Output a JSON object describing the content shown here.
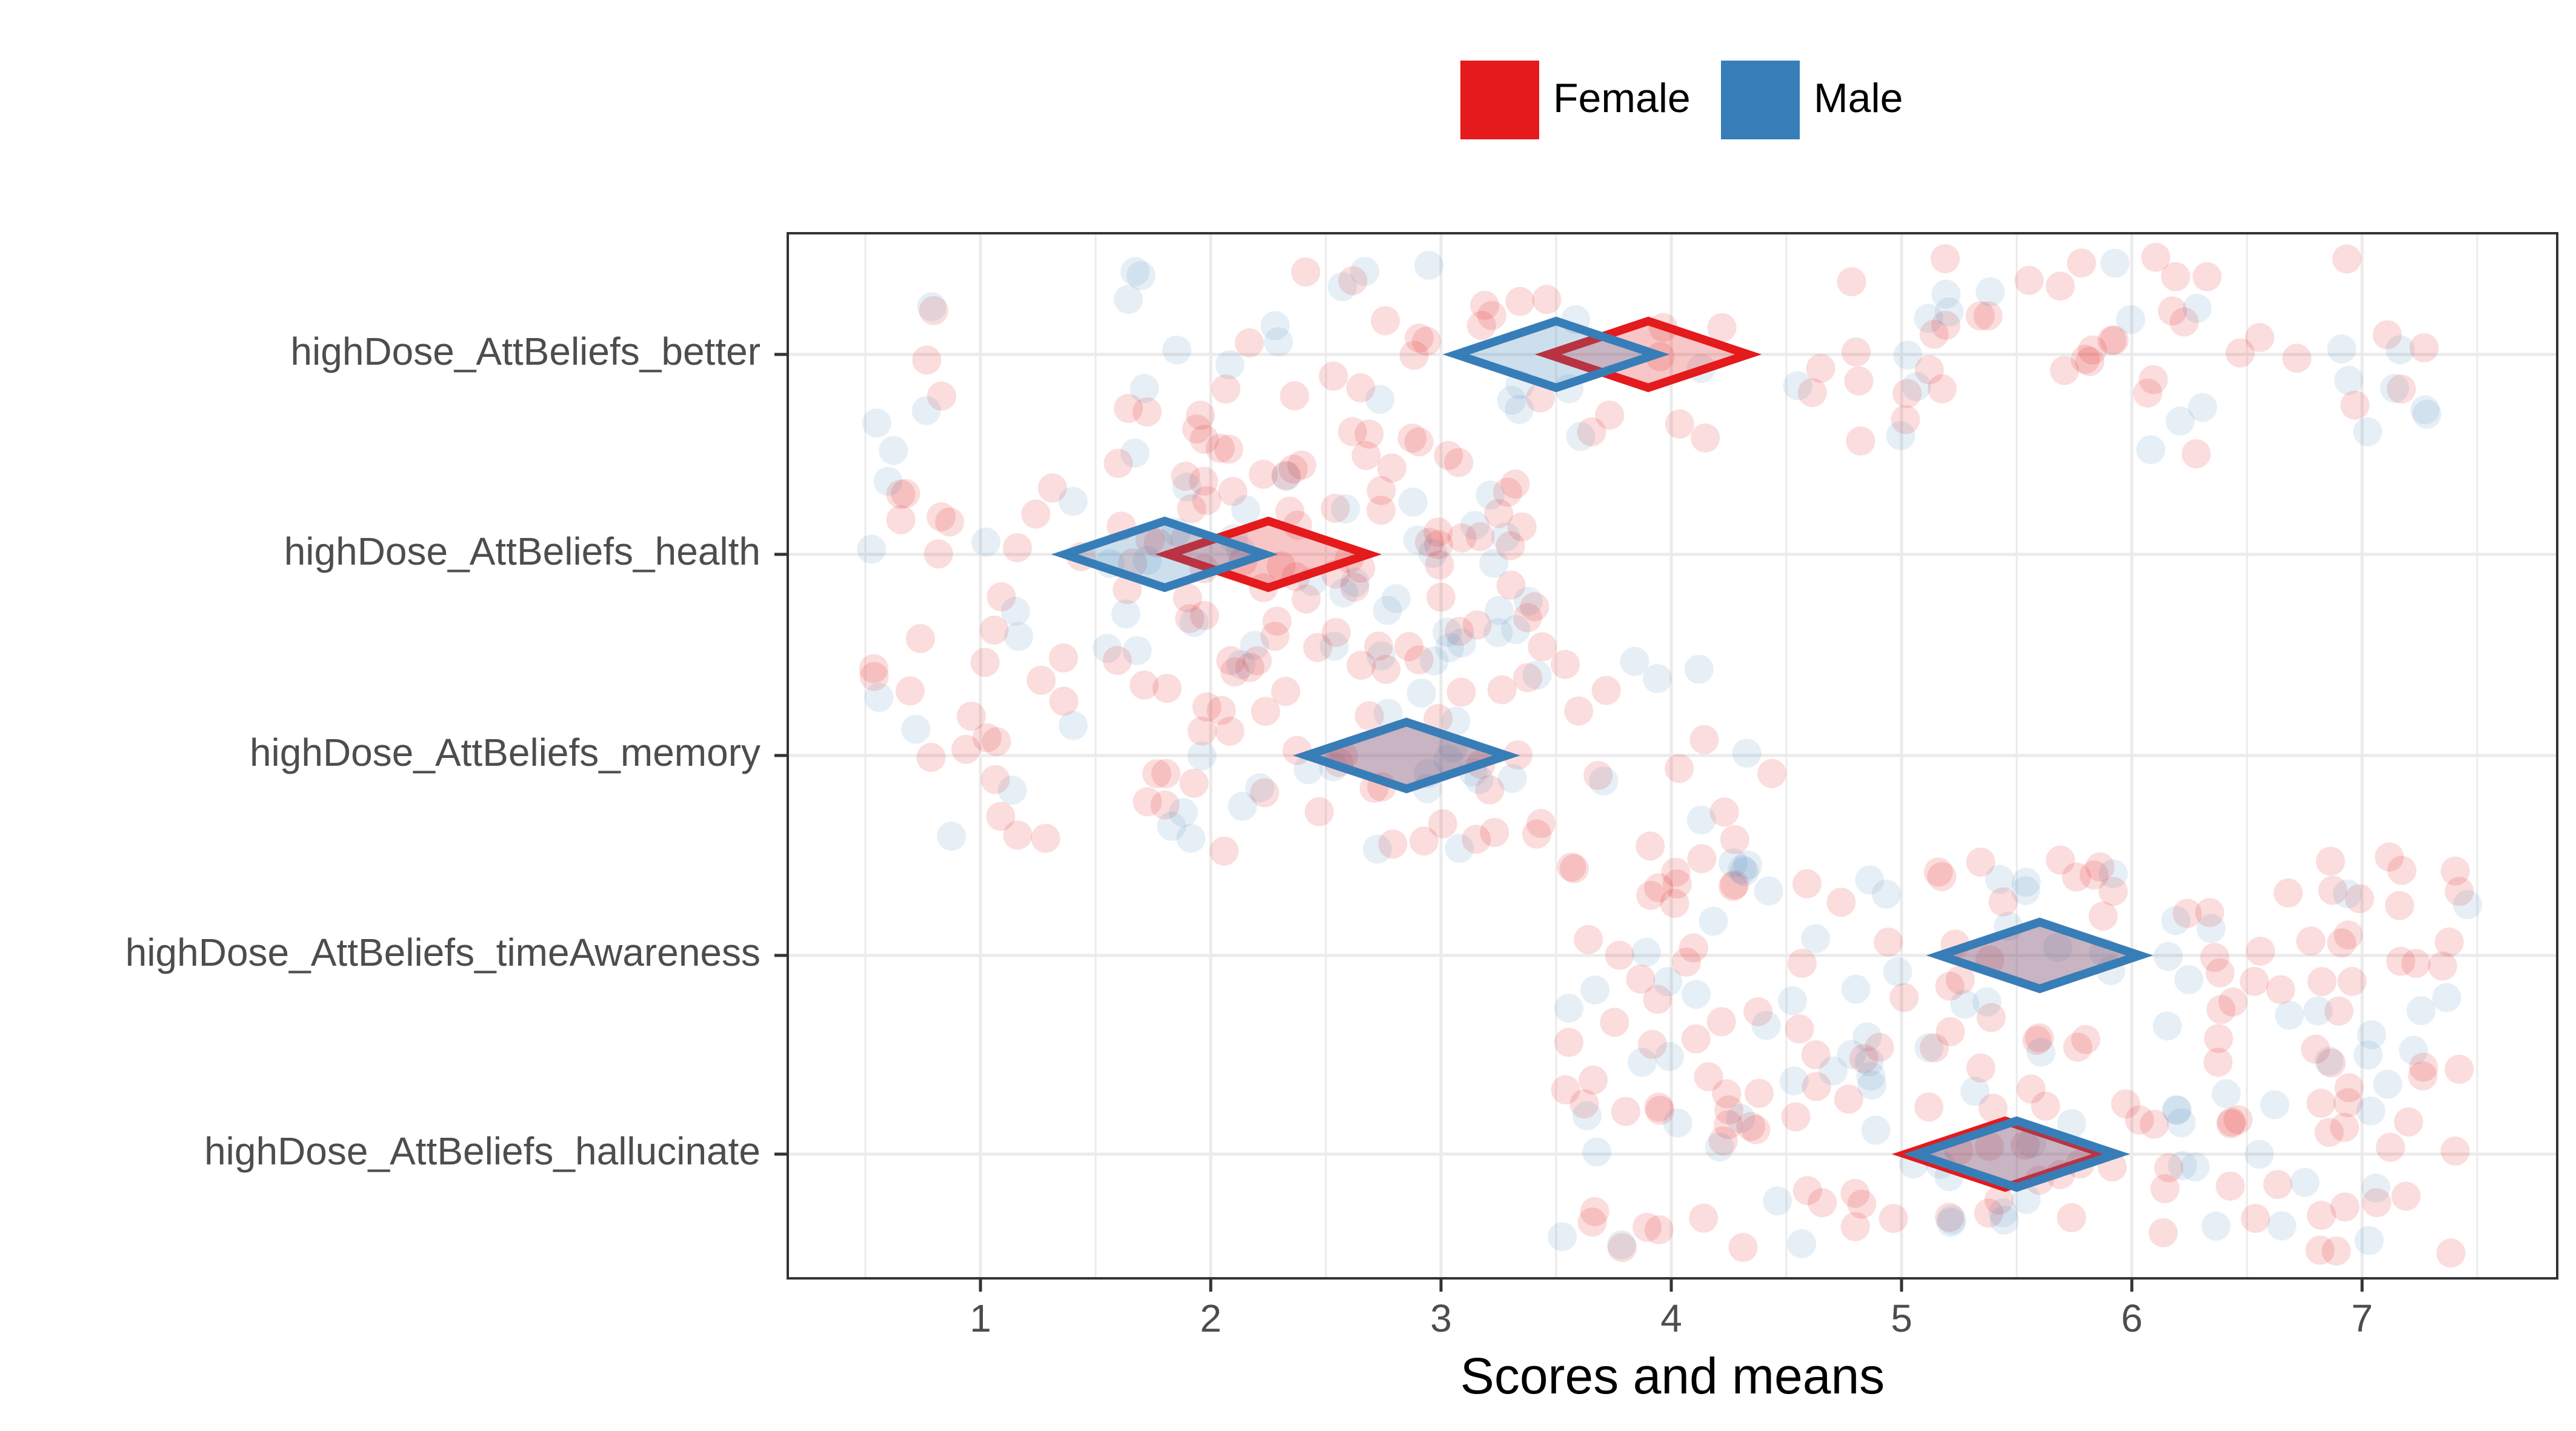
{
  "chart_data": {
    "type": "scatter",
    "subtype": "jittered points with mean diamonds",
    "xlabel": "Scores and means",
    "ylabel": "",
    "xlim": [
      0.5,
      7.5
    ],
    "x_ticks": [
      1,
      2,
      3,
      4,
      5,
      6,
      7
    ],
    "categories": [
      "highDose_AttBeliefs_better",
      "highDose_AttBeliefs_health",
      "highDose_AttBeliefs_memory",
      "highDose_AttBeliefs_timeAwareness",
      "highDose_AttBeliefs_hallucinate"
    ],
    "grid": true,
    "legend": {
      "position": "top",
      "entries": [
        "Female",
        "Male"
      ]
    },
    "series": [
      {
        "name": "Female",
        "color": "#e41a1c",
        "means": [
          3.9,
          2.25,
          2.85,
          5.6,
          5.45
        ],
        "point_counts": [
          78,
          75,
          70,
          80,
          80
        ]
      },
      {
        "name": "Male",
        "color": "#377eb8",
        "means": [
          3.5,
          1.8,
          2.85,
          5.6,
          5.5
        ],
        "point_counts": [
          45,
          40,
          35,
          45,
          45
        ]
      }
    ],
    "jitter_distributions": {
      "highDose_AttBeliefs_better": {
        "Female": [
          1,
          7
        ],
        "Male": [
          1,
          7
        ]
      },
      "highDose_AttBeliefs_health": {
        "Female": [
          1,
          3.5
        ],
        "Male": [
          1,
          3.5
        ]
      },
      "highDose_AttBeliefs_memory": {
        "Female": [
          1,
          4
        ],
        "Male": [
          1,
          4
        ]
      },
      "highDose_AttBeliefs_timeAwareness": {
        "Female": [
          3.5,
          7.5
        ],
        "Male": [
          3.5,
          7.5
        ]
      },
      "highDose_AttBeliefs_hallucinate": {
        "Female": [
          3.5,
          7.5
        ],
        "Male": [
          3.5,
          7.5
        ]
      }
    }
  }
}
